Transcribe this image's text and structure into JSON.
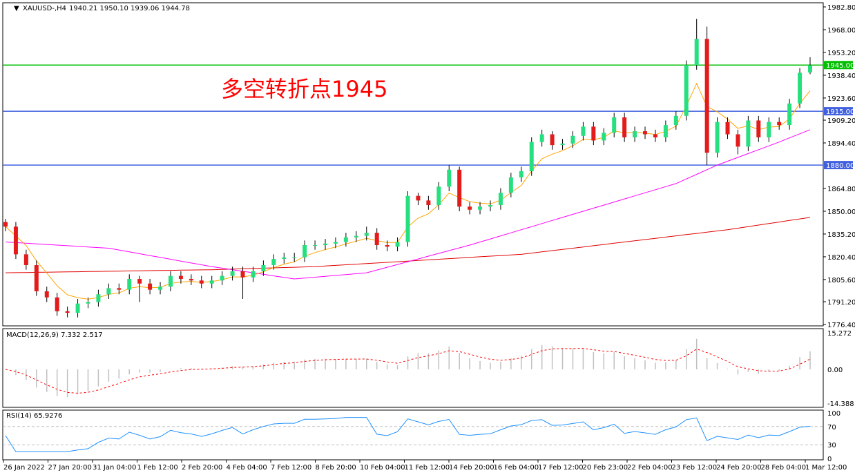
{
  "header": {
    "symbol": "XAUUSD-,H4",
    "ohlc": "1940.21 1950.10 1939.06 1944.78"
  },
  "annotation": {
    "text": "多空转折点1945",
    "color": "#ff0000"
  },
  "chart_data": [
    {
      "type": "candlestick",
      "title": "XAUUSD-,H4",
      "ylim": [
        1776.4,
        1982.8
      ],
      "yticks": [
        "1982.80",
        "1968.00",
        "1953.20",
        "1938.40",
        "1923.60",
        "1909.20",
        "1894.40",
        "1864.80",
        "1850.00",
        "1835.20",
        "1820.40",
        "1805.60",
        "1791.20",
        "1776.40"
      ],
      "xticks": [
        "26 Jan 2022",
        "27 Jan 20:00",
        "31 Jan 04:00",
        "1 Feb 12:00",
        "2 Feb 20:00",
        "4 Feb 04:00",
        "7 Feb 12:00",
        "8 Feb 20:00",
        "10 Feb 04:00",
        "11 Feb 12:00",
        "14 Feb 20:00",
        "16 Feb 04:00",
        "17 Feb 12:00",
        "20 Feb 23:00",
        "22 Feb 04:00",
        "23 Feb 12:00",
        "24 Feb 20:00",
        "28 Feb 04:00",
        "1 Mar 12:00"
      ],
      "close": [
        1840,
        1822,
        1815,
        1798,
        1794,
        1785,
        1784,
        1790,
        1791,
        1796,
        1800,
        1799,
        1806,
        1803,
        1799,
        1801,
        1808,
        1806,
        1805,
        1803,
        1805,
        1808,
        1811,
        1807,
        1811,
        1815,
        1819,
        1820,
        1820,
        1828,
        1828,
        1829,
        1830,
        1833,
        1834,
        1836,
        1828,
        1827,
        1830,
        1860,
        1857,
        1854,
        1866,
        1877,
        1853,
        1851,
        1853,
        1854,
        1862,
        1872,
        1876,
        1895,
        1900,
        1893,
        1894,
        1899,
        1905,
        1896,
        1901,
        1911,
        1898,
        1902,
        1900,
        1898,
        1906,
        1912,
        1945,
        1962,
        1888,
        1908,
        1900,
        1892,
        1909,
        1898,
        1908,
        1906,
        1920,
        1940,
        1944.78
      ],
      "open": [
        1843,
        1840,
        1822,
        1815,
        1798,
        1794,
        1785,
        1784,
        1790,
        1791,
        1796,
        1800,
        1799,
        1806,
        1803,
        1799,
        1801,
        1808,
        1806,
        1805,
        1803,
        1805,
        1808,
        1811,
        1807,
        1811,
        1815,
        1819,
        1820,
        1820,
        1828,
        1828,
        1829,
        1830,
        1833,
        1834,
        1836,
        1828,
        1827,
        1830,
        1860,
        1857,
        1854,
        1866,
        1877,
        1853,
        1851,
        1853,
        1854,
        1862,
        1872,
        1876,
        1895,
        1900,
        1893,
        1894,
        1899,
        1905,
        1896,
        1901,
        1911,
        1898,
        1902,
        1900,
        1898,
        1906,
        1912,
        1945,
        1962,
        1888,
        1908,
        1900,
        1892,
        1909,
        1898,
        1908,
        1906,
        1920,
        1940.21
      ],
      "high": [
        1845,
        1843,
        1825,
        1818,
        1801,
        1797,
        1788,
        1793,
        1794,
        1799,
        1803,
        1803,
        1809,
        1808,
        1806,
        1804,
        1811,
        1811,
        1809,
        1808,
        1808,
        1811,
        1814,
        1814,
        1814,
        1818,
        1822,
        1823,
        1823,
        1831,
        1831,
        1832,
        1833,
        1836,
        1837,
        1840,
        1839,
        1831,
        1833,
        1863,
        1862,
        1860,
        1869,
        1880,
        1879,
        1856,
        1856,
        1857,
        1865,
        1875,
        1879,
        1898,
        1903,
        1902,
        1897,
        1902,
        1908,
        1908,
        1904,
        1914,
        1914,
        1905,
        1905,
        1903,
        1909,
        1915,
        1948,
        1975,
        1970,
        1911,
        1911,
        1903,
        1912,
        1912,
        1911,
        1911,
        1923,
        1943,
        1950.1
      ],
      "low": [
        1837,
        1819,
        1812,
        1795,
        1791,
        1782,
        1781,
        1781,
        1787,
        1788,
        1793,
        1796,
        1796,
        1791,
        1796,
        1796,
        1798,
        1803,
        1802,
        1800,
        1800,
        1802,
        1805,
        1793,
        1804,
        1808,
        1812,
        1816,
        1817,
        1817,
        1825,
        1825,
        1826,
        1827,
        1830,
        1831,
        1825,
        1824,
        1824,
        1827,
        1854,
        1851,
        1851,
        1863,
        1850,
        1848,
        1848,
        1850,
        1851,
        1859,
        1869,
        1873,
        1892,
        1890,
        1890,
        1891,
        1896,
        1893,
        1893,
        1898,
        1895,
        1895,
        1897,
        1895,
        1895,
        1903,
        1909,
        1942,
        1880,
        1885,
        1897,
        1887,
        1889,
        1895,
        1895,
        1903,
        1903,
        1917,
        1939.06
      ],
      "ma_orange": "computed",
      "ma_magenta": {
        "index": [
          0,
          10,
          20,
          28,
          35,
          45,
          55,
          65,
          69,
          75,
          78
        ],
        "values": [
          1830,
          1826,
          1814,
          1806,
          1810,
          1828,
          1848,
          1868,
          1880,
          1895,
          1903
        ]
      },
      "ma_red": {
        "index": [
          0,
          10,
          20,
          30,
          40,
          50,
          60,
          70,
          78
        ],
        "values": [
          1810,
          1811,
          1812,
          1814,
          1818,
          1822,
          1830,
          1838,
          1846
        ]
      },
      "hlines": [
        {
          "value": 1945.0,
          "label": "1945.00",
          "color": "#00c000"
        },
        {
          "value": 1915.0,
          "label": "1915.00",
          "color": "#4060e0"
        },
        {
          "value": 1880.0,
          "label": "1880.00",
          "color": "#4060e0"
        }
      ],
      "colors": {
        "bull": "#26e07f",
        "bear": "#e31b1b",
        "orange": "#ffa500",
        "magenta": "#ff00ff",
        "red": "#e00000"
      }
    },
    {
      "type": "bar",
      "title": "MACD(12,26,9) 7.332 2.517",
      "ylim": [
        -14.388,
        15.272
      ],
      "yticks": [
        "15.272",
        "0.00",
        "-14.388"
      ],
      "colors": {
        "hist": "#c0c0c0",
        "signal": "#ff0000"
      }
    },
    {
      "type": "line",
      "title": "RSI(14) 65.9276",
      "ylim": [
        0,
        100
      ],
      "yticks": [
        "100",
        "70",
        "30",
        "0"
      ],
      "levels": [
        30,
        70
      ],
      "colors": {
        "line": "#1e90ff"
      }
    }
  ]
}
